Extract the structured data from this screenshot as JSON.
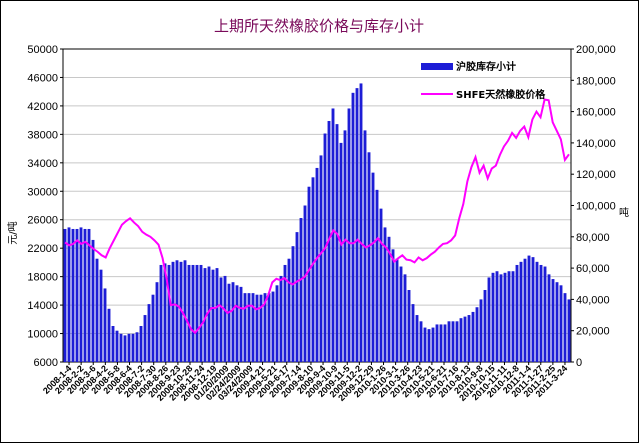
{
  "chart_data": {
    "type": "bar+line",
    "title": "上期所天然橡胶价格与库存小计",
    "ylabel_left": "元/吨",
    "ylabel_right": "吨",
    "legend_position": "top-right",
    "grid": true,
    "x_tick_labels": [
      "2008-1-4",
      "2008-2-2",
      "2008-3-6",
      "2008-4-2",
      "2008-5-8",
      "2008-6-4",
      "2008-7-2",
      "2008-7-30",
      "2008-8-26",
      "2008-9-23",
      "2008-10-28",
      "2008-11-24",
      "2008-12-19",
      "01/20/2009",
      "02/24/2009",
      "03/24/2009",
      "2009-4-21",
      "2009-5-21",
      "2009-6-17",
      "2009-7-14",
      "2009-8-10",
      "2009-9-4",
      "2009-10-9",
      "2009-11-5",
      "2009-12-2",
      "2009-12-29",
      "2010-1-26",
      "2010-3-1",
      "2010-3-26",
      "2010-4-23",
      "2010-5-21",
      "2010-6-21",
      "2010-7-16",
      "2010-8-13",
      "2010-9-8",
      "2010-10-15",
      "2010-11-11",
      "2010-12-8",
      "2011-1-4",
      "2011-1-27",
      "2011-2-25",
      "2011-3-24"
    ],
    "y_left": {
      "min": 6000,
      "max": 50000,
      "step": 4000
    },
    "y_right": {
      "min": 0,
      "max": 200000,
      "step": 20000
    },
    "series": [
      {
        "name": "沪胶库存小计",
        "axis": "right",
        "color": "#1d1dd6",
        "values": [
          85000,
          86000,
          85000,
          85000,
          86000,
          85000,
          85000,
          78000,
          66000,
          59000,
          47000,
          34000,
          23000,
          20000,
          18000,
          17000,
          18000,
          18000,
          19000,
          23000,
          30000,
          37000,
          43000,
          51000,
          62000,
          63000,
          62000,
          64000,
          65000,
          64000,
          65000,
          62000,
          62000,
          62000,
          62000,
          60000,
          61000,
          59000,
          60000,
          54000,
          55000,
          50000,
          51000,
          49000,
          48000,
          44000,
          44000,
          44000,
          43000,
          43000,
          44000,
          44000,
          45000,
          49000,
          55000,
          62000,
          66000,
          74000,
          83000,
          92000,
          100000,
          112000,
          118000,
          124000,
          132000,
          146000,
          154000,
          162000,
          152000,
          140000,
          148000,
          162000,
          172000,
          175000,
          178000,
          148000,
          134000,
          121000,
          110000,
          98000,
          86000,
          80000,
          72000,
          66000,
          61000,
          56000,
          46000,
          37000,
          30000,
          26000,
          22000,
          21000,
          22000,
          24000,
          24000,
          24000,
          26000,
          26000,
          26000,
          28000,
          29000,
          30000,
          32000,
          35000,
          40000,
          46000,
          54000,
          57000,
          58000,
          56000,
          57000,
          58000,
          58000,
          62000,
          64000,
          66000,
          68000,
          67000,
          64000,
          62000,
          61000,
          56000,
          53000,
          51000,
          49000,
          44000,
          40000
        ]
      },
      {
        "name": "SHFE天然橡胶价格",
        "axis": "left",
        "color": "#ff00ff",
        "values": [
          22800,
          22400,
          22600,
          23100,
          22600,
          22900,
          22400,
          21900,
          21500,
          21000,
          20700,
          22000,
          23100,
          24200,
          25300,
          25800,
          26200,
          25600,
          25100,
          24300,
          23900,
          23600,
          23100,
          22500,
          20600,
          17700,
          14000,
          14100,
          13800,
          12900,
          11800,
          10600,
          10100,
          10800,
          11600,
          12800,
          13600,
          13600,
          14000,
          13500,
          12900,
          13200,
          13900,
          13600,
          13500,
          13900,
          13900,
          13400,
          13600,
          14100,
          15400,
          17200,
          17700,
          17500,
          17800,
          17200,
          16900,
          17300,
          17600,
          18000,
          18900,
          19800,
          20600,
          21300,
          22000,
          23300,
          24500,
          24000,
          22500,
          23200,
          22700,
          22700,
          23200,
          22600,
          22100,
          22400,
          22800,
          23400,
          22600,
          22100,
          21200,
          20100,
          20600,
          21000,
          20400,
          20300,
          20000,
          20700,
          20300,
          20600,
          21100,
          21500,
          22100,
          22600,
          22700,
          23100,
          23800,
          26200,
          28200,
          31400,
          33400,
          34800,
          32600,
          33600,
          31800,
          33200,
          33600,
          35100,
          36300,
          37100,
          38200,
          37500,
          38500,
          39100,
          37600,
          40100,
          41200,
          40400,
          42900,
          42800,
          39700,
          38500,
          37300,
          34400,
          35200
        ]
      }
    ]
  }
}
